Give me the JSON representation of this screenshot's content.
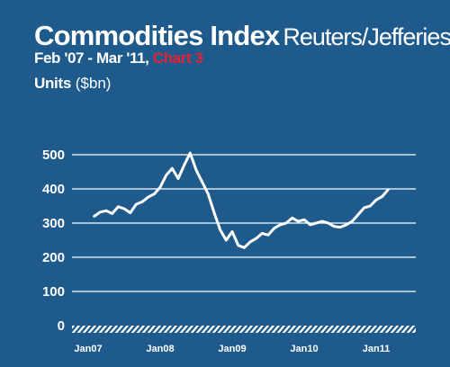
{
  "header": {
    "title": "Commodities Index",
    "title_source": "Reuters/Jefferies",
    "period": "Feb '07 - Mar '11,",
    "chart_tag": "Chart 3",
    "units_label": "Units",
    "units_suffix": "($bn)"
  },
  "colors": {
    "background": "#1e5a8c",
    "chart_tag": "#e8212e",
    "line": "#ffffff",
    "grid": "#ffffff"
  },
  "chart_data": {
    "type": "line",
    "title": "Commodities Index",
    "subtitle": "Reuters/Jefferies",
    "ylabel": "Units ($bn)",
    "ylim": [
      0,
      500
    ],
    "yticks": [
      0,
      100,
      200,
      300,
      400,
      500
    ],
    "xticks": [
      "Jan07",
      "Jan08",
      "Jan09",
      "Jan10",
      "Jan11"
    ],
    "x_start": "2007-02",
    "x_end": "2011-03",
    "grid": true,
    "series": [
      {
        "name": "",
        "x": [
          "2007-02",
          "2007-03",
          "2007-04",
          "2007-05",
          "2007-06",
          "2007-07",
          "2007-08",
          "2007-09",
          "2007-10",
          "2007-11",
          "2007-12",
          "2008-01",
          "2008-02",
          "2008-03",
          "2008-04",
          "2008-05",
          "2008-06",
          "2008-07",
          "2008-08",
          "2008-09",
          "2008-10",
          "2008-11",
          "2008-12",
          "2009-01",
          "2009-02",
          "2009-03",
          "2009-04",
          "2009-05",
          "2009-06",
          "2009-07",
          "2009-08",
          "2009-09",
          "2009-10",
          "2009-11",
          "2009-12",
          "2010-01",
          "2010-02",
          "2010-03",
          "2010-04",
          "2010-05",
          "2010-06",
          "2010-07",
          "2010-08",
          "2010-09",
          "2010-10",
          "2010-11",
          "2010-12",
          "2011-01",
          "2011-02",
          "2011-03"
        ],
        "values": [
          320,
          332,
          336,
          328,
          348,
          342,
          330,
          355,
          362,
          376,
          385,
          405,
          440,
          460,
          430,
          470,
          505,
          455,
          420,
          385,
          330,
          280,
          250,
          275,
          235,
          228,
          245,
          255,
          270,
          265,
          285,
          295,
          300,
          315,
          305,
          310,
          295,
          300,
          305,
          300,
          290,
          288,
          295,
          305,
          325,
          345,
          350,
          368,
          378,
          398
        ]
      }
    ]
  }
}
